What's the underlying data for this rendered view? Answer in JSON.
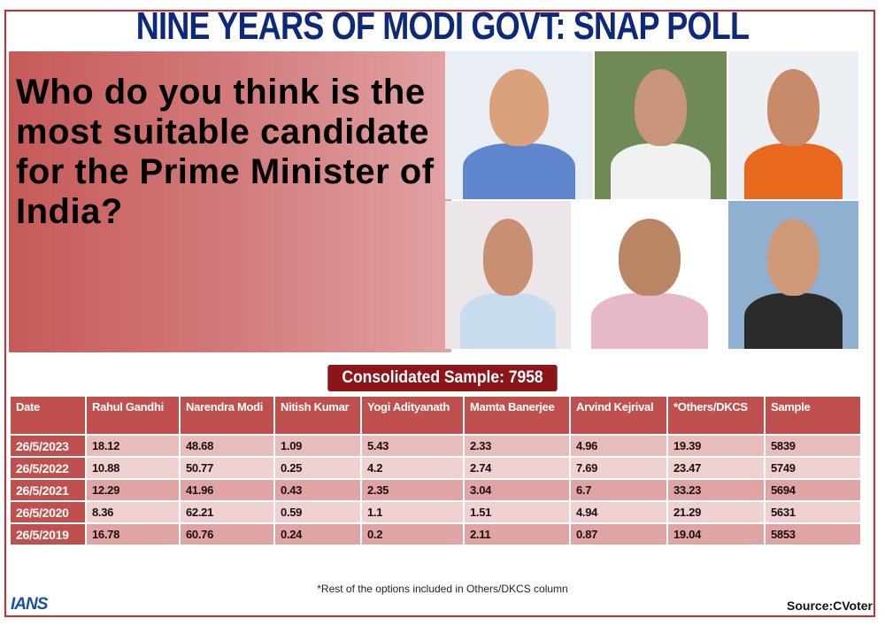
{
  "headline": "NINE YEARS OF MODI GOVT: SNAP POLL",
  "question": "Who do you think is the most suitable candidate for the Prime Minister of India?",
  "photos": [
    {
      "name": "Narendra Modi",
      "bg": "#e9eef4",
      "face": "#d9a27c",
      "body": "#5f86cf"
    },
    {
      "name": "Rahul Gandhi",
      "bg": "#6f8a55",
      "face": "#c9957a",
      "body": "#f1f1f1"
    },
    {
      "name": "Yogi Adityanath",
      "bg": "#eceff3",
      "face": "#c88a68",
      "body": "#e8681e"
    },
    {
      "name": "Arvind Kejriwal",
      "bg": "#ece6e8",
      "face": "#c98f72",
      "body": "#c9dbef"
    },
    {
      "name": "Mamta Banerjee",
      "bg": "#ffffff",
      "face": "#b88565",
      "body": "#e6b8c8"
    },
    {
      "name": "Nitish Kumar",
      "bg": "#8fb0d0",
      "face": "#cf9a7a",
      "body": "#2b2b2b"
    }
  ],
  "badge": "Consolidated Sample: 7958",
  "table": {
    "headers": [
      "Date",
      "Rahul Gandhi",
      "Narendra Modi",
      "Nitish Kumar",
      "Yogi Adityanath",
      "Mamta Banerjee",
      "Arvind Kejrival",
      "*Others/DKCS",
      "Sample"
    ],
    "rows": [
      [
        "26/5/2023",
        "18.12",
        "48.68",
        "1.09",
        "5.43",
        "2.33",
        "4.96",
        "19.39",
        "5839"
      ],
      [
        "26/5/2022",
        "10.88",
        "50.77",
        "0.25",
        "4.2",
        "2.74",
        "7.69",
        "23.47",
        "5749"
      ],
      [
        "26/5/2021",
        "12.29",
        "41.96",
        "0.43",
        "2.35",
        "3.04",
        "6.7",
        "33.23",
        "5694"
      ],
      [
        "26/5/2020",
        "8.36",
        "62.21",
        "0.59",
        "1.1",
        "1.51",
        "4.94",
        "21.29",
        "5631"
      ],
      [
        "26/5/2019",
        "16.78",
        "60.76",
        "0.24",
        "0.2",
        "2.11",
        "0.87",
        "19.04",
        "5853"
      ]
    ]
  },
  "footnote": "*Rest of the options included in Others/DKCS column",
  "logo": "IANS",
  "source": "Source:CVoter",
  "colors": {
    "headline": "#0d2a7a",
    "border": "#d8262c",
    "header_cell": "#c0504d",
    "badge": "#8b1518"
  }
}
